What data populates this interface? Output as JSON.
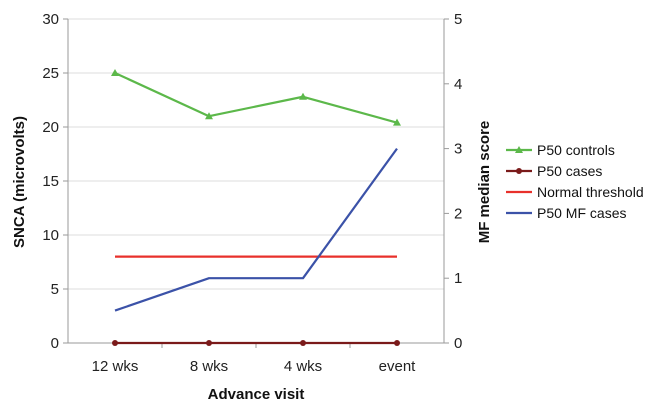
{
  "chart_data": {
    "type": "line",
    "title": "",
    "xlabel": "Advance visit",
    "ylabel_left": "SNCA (microvolts)",
    "ylabel_right": "MF median score",
    "categories": [
      "12 wks",
      "8 wks",
      "4 wks",
      "event"
    ],
    "ylim_left": [
      0,
      30
    ],
    "yticks_left": [
      0,
      5,
      10,
      15,
      20,
      25,
      30
    ],
    "ylim_right": [
      0,
      5
    ],
    "yticks_right": [
      0,
      1,
      2,
      3,
      4,
      5
    ],
    "grid": "horizontal",
    "legend_position": "right",
    "series": [
      {
        "name": "P50 controls",
        "axis": "left",
        "color": "#5cb84a",
        "marker": "triangle",
        "values": [
          25,
          21,
          22.8,
          20.4
        ]
      },
      {
        "name": "P50 cases",
        "axis": "left",
        "color": "#7a1a1a",
        "marker": "circle",
        "values": [
          0,
          0,
          0,
          0
        ]
      },
      {
        "name": "Normal threshold",
        "axis": "left",
        "color": "#e8302b",
        "marker": "none",
        "values": [
          8,
          8,
          8,
          8
        ]
      },
      {
        "name": "P50 MF cases",
        "axis": "right",
        "color": "#3b52a8",
        "marker": "none",
        "values": [
          0.5,
          1,
          1,
          3
        ]
      }
    ]
  }
}
